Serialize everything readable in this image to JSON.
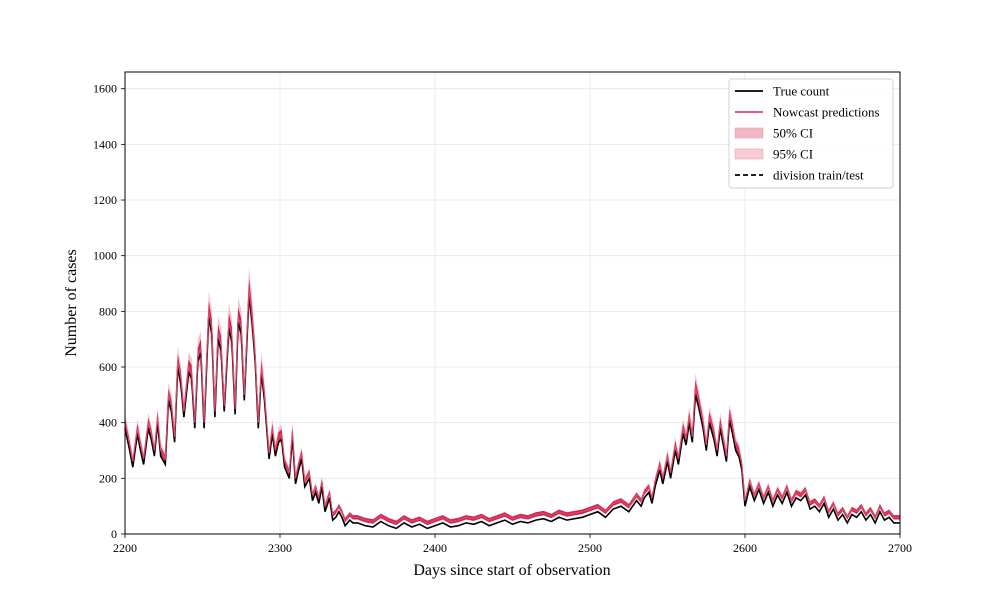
{
  "chart_data": {
    "type": "line",
    "title": "",
    "xlabel": "Days since start of observation",
    "ylabel": "Number of cases",
    "xlim": [
      2200,
      2700
    ],
    "ylim": [
      0,
      1660
    ],
    "xticks": [
      2200,
      2300,
      2400,
      2500,
      2600,
      2700
    ],
    "yticks": [
      0,
      200,
      400,
      600,
      800,
      1000,
      1200,
      1400,
      1600
    ],
    "grid": true,
    "legend_position": "top-right",
    "legend": [
      {
        "label": "True count",
        "style": "solid",
        "color": "#000000"
      },
      {
        "label": "Nowcast predictions",
        "style": "solid",
        "color": "#e0456a"
      },
      {
        "label": "50% CI",
        "style": "patch",
        "color": "#f4b6c2"
      },
      {
        "label": "95% CI",
        "style": "patch",
        "color": "#f8ccd5"
      },
      {
        "label": "division train/test",
        "style": "dashed",
        "color": "#000000"
      }
    ],
    "colors": {
      "true_count": "#000000",
      "nowcast": "#e0456a",
      "ci50": "#c8183f",
      "ci95": "#f4b6c2"
    },
    "series": [
      {
        "name": "True count",
        "x": [
          2200,
          2203,
          2205,
          2208,
          2210,
          2212,
          2215,
          2217,
          2219,
          2221,
          2223,
          2226,
          2228,
          2230,
          2232,
          2234,
          2236,
          2238,
          2241,
          2243,
          2245,
          2247,
          2249,
          2251,
          2254,
          2256,
          2258,
          2260,
          2262,
          2264,
          2267,
          2269,
          2271,
          2273,
          2275,
          2277,
          2280,
          2282,
          2284,
          2286,
          2288,
          2290,
          2293,
          2295,
          2297,
          2299,
          2301,
          2303,
          2306,
          2308,
          2310,
          2312,
          2314,
          2316,
          2319,
          2321,
          2323,
          2325,
          2327,
          2329,
          2332,
          2334,
          2336,
          2338,
          2340,
          2342,
          2345,
          2347,
          2350,
          2355,
          2360,
          2365,
          2370,
          2375,
          2380,
          2385,
          2390,
          2395,
          2400,
          2405,
          2410,
          2415,
          2420,
          2425,
          2430,
          2435,
          2440,
          2445,
          2450,
          2455,
          2460,
          2465,
          2470,
          2475,
          2480,
          2485,
          2490,
          2495,
          2500,
          2505,
          2510,
          2515,
          2520,
          2525,
          2530,
          2533,
          2535,
          2538,
          2540,
          2542,
          2545,
          2547,
          2550,
          2552,
          2555,
          2557,
          2560,
          2562,
          2564,
          2566,
          2568,
          2570,
          2573,
          2575,
          2577,
          2580,
          2582,
          2584,
          2586,
          2588,
          2590,
          2592,
          2594,
          2596,
          2598,
          2600,
          2603,
          2606,
          2609,
          2612,
          2615,
          2618,
          2621,
          2624,
          2627,
          2630,
          2633,
          2636,
          2639,
          2642,
          2645,
          2648,
          2651,
          2654,
          2657,
          2660,
          2663,
          2666,
          2669,
          2672,
          2675,
          2678,
          2681,
          2684,
          2687,
          2690,
          2693,
          2696,
          2700
        ],
        "y": [
          380,
          300,
          240,
          360,
          300,
          250,
          380,
          340,
          280,
          400,
          280,
          250,
          480,
          440,
          330,
          600,
          540,
          420,
          580,
          560,
          380,
          620,
          650,
          380,
          780,
          720,
          420,
          700,
          660,
          440,
          740,
          690,
          430,
          760,
          720,
          480,
          860,
          760,
          620,
          380,
          580,
          480,
          270,
          360,
          280,
          330,
          340,
          240,
          200,
          350,
          180,
          230,
          270,
          170,
          200,
          120,
          150,
          110,
          170,
          80,
          130,
          50,
          60,
          80,
          60,
          30,
          50,
          40,
          40,
          30,
          25,
          45,
          30,
          20,
          40,
          25,
          35,
          20,
          30,
          40,
          25,
          30,
          40,
          35,
          45,
          30,
          40,
          50,
          35,
          45,
          40,
          50,
          55,
          45,
          60,
          50,
          55,
          60,
          70,
          80,
          60,
          90,
          100,
          80,
          120,
          100,
          130,
          150,
          110,
          170,
          230,
          180,
          260,
          200,
          300,
          250,
          360,
          320,
          400,
          330,
          500,
          460,
          380,
          300,
          400,
          340,
          280,
          380,
          320,
          260,
          410,
          360,
          300,
          280,
          230,
          100,
          170,
          120,
          160,
          110,
          150,
          100,
          140,
          110,
          150,
          100,
          130,
          120,
          140,
          90,
          100,
          80,
          110,
          60,
          90,
          50,
          70,
          40,
          70,
          60,
          80,
          50,
          70,
          40,
          80,
          50,
          60,
          40,
          40
        ]
      },
      {
        "name": "Nowcast predictions",
        "x": [
          2200,
          2203,
          2205,
          2208,
          2210,
          2212,
          2215,
          2217,
          2219,
          2221,
          2223,
          2226,
          2228,
          2230,
          2232,
          2234,
          2236,
          2238,
          2241,
          2243,
          2245,
          2247,
          2249,
          2251,
          2254,
          2256,
          2258,
          2260,
          2262,
          2264,
          2267,
          2269,
          2271,
          2273,
          2275,
          2277,
          2280,
          2282,
          2284,
          2286,
          2288,
          2290,
          2293,
          2295,
          2297,
          2299,
          2301,
          2303,
          2306,
          2308,
          2310,
          2312,
          2314,
          2316,
          2319,
          2321,
          2323,
          2325,
          2327,
          2329,
          2332,
          2334,
          2336,
          2338,
          2340,
          2342,
          2345,
          2347,
          2350,
          2355,
          2360,
          2365,
          2370,
          2375,
          2380,
          2385,
          2390,
          2395,
          2400,
          2405,
          2410,
          2415,
          2420,
          2425,
          2430,
          2435,
          2440,
          2445,
          2450,
          2455,
          2460,
          2465,
          2470,
          2475,
          2480,
          2485,
          2490,
          2495,
          2500,
          2505,
          2510,
          2515,
          2520,
          2525,
          2530,
          2533,
          2535,
          2538,
          2540,
          2542,
          2545,
          2547,
          2550,
          2552,
          2555,
          2557,
          2560,
          2562,
          2564,
          2566,
          2568,
          2570,
          2573,
          2575,
          2577,
          2580,
          2582,
          2584,
          2586,
          2588,
          2590,
          2592,
          2594,
          2596,
          2598,
          2600,
          2603,
          2606,
          2609,
          2612,
          2615,
          2618,
          2621,
          2624,
          2627,
          2630,
          2633,
          2636,
          2639,
          2642,
          2645,
          2648,
          2651,
          2654,
          2657,
          2660,
          2663,
          2666,
          2669,
          2672,
          2675,
          2678,
          2681,
          2684,
          2687,
          2690,
          2693,
          2696,
          2700
        ],
        "y": [
          400,
          320,
          260,
          380,
          320,
          270,
          400,
          360,
          300,
          420,
          300,
          270,
          500,
          460,
          350,
          620,
          560,
          440,
          600,
          580,
          400,
          640,
          670,
          400,
          800,
          740,
          440,
          720,
          680,
          460,
          760,
          710,
          450,
          780,
          740,
          500,
          880,
          780,
          640,
          400,
          600,
          500,
          290,
          380,
          300,
          350,
          360,
          260,
          220,
          370,
          200,
          250,
          290,
          190,
          220,
          140,
          170,
          130,
          190,
          100,
          150,
          70,
          80,
          100,
          80,
          50,
          70,
          60,
          60,
          50,
          45,
          65,
          50,
          40,
          60,
          45,
          55,
          40,
          50,
          60,
          45,
          50,
          60,
          55,
          65,
          50,
          60,
          70,
          55,
          65,
          60,
          70,
          75,
          65,
          80,
          70,
          75,
          80,
          90,
          100,
          80,
          110,
          120,
          100,
          140,
          120,
          150,
          170,
          130,
          190,
          250,
          200,
          280,
          220,
          320,
          270,
          380,
          340,
          420,
          350,
          530,
          480,
          400,
          320,
          420,
          360,
          300,
          400,
          340,
          280,
          430,
          380,
          320,
          300,
          250,
          120,
          190,
          140,
          180,
          130,
          170,
          120,
          160,
          130,
          170,
          120,
          150,
          140,
          160,
          110,
          120,
          100,
          130,
          80,
          110,
          70,
          90,
          60,
          90,
          80,
          100,
          70,
          90,
          60,
          100,
          70,
          80,
          60,
          60
        ]
      }
    ]
  }
}
